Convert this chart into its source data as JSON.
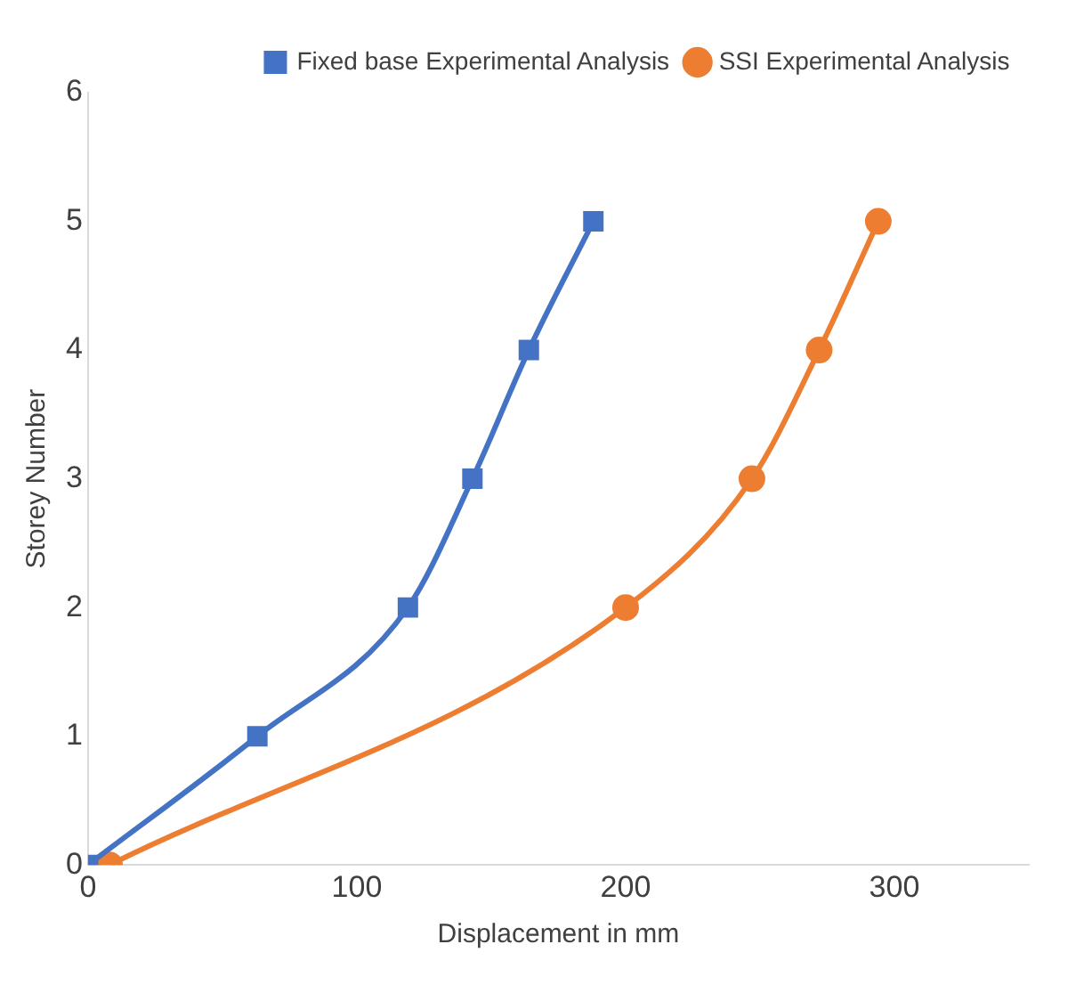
{
  "chart_data": {
    "type": "line",
    "xlabel": "Displacement in mm",
    "ylabel": "Storey Number",
    "xlim": [
      0,
      350
    ],
    "xticks": [
      0,
      100,
      200,
      300
    ],
    "ylim": [
      0,
      6
    ],
    "yticks": [
      0,
      1,
      2,
      3,
      4,
      5,
      6
    ],
    "grid": false,
    "legend": "top right",
    "series": [
      {
        "name": "Fixed base Experimental Analysis",
        "color": "#4472c4",
        "marker": "square",
        "x": [
          0,
          63,
          119,
          143,
          164,
          188
        ],
        "values": [
          0,
          1,
          2,
          3,
          4,
          5
        ]
      },
      {
        "name": "SSI Experimental Analysis",
        "color": "#ed7d31",
        "marker": "circle",
        "x": [
          8,
          200,
          247,
          272,
          294
        ],
        "values": [
          0,
          2,
          3,
          4,
          5
        ]
      }
    ]
  }
}
